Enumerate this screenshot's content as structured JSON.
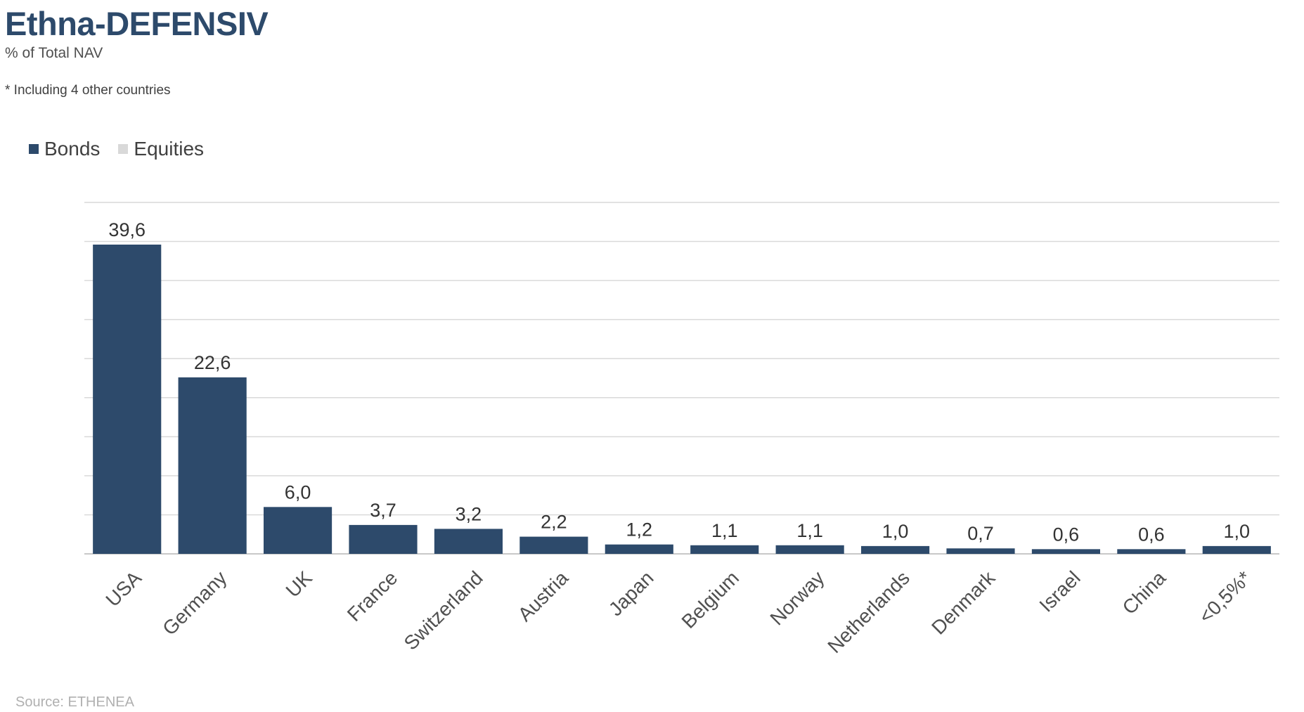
{
  "header": {
    "title": "Ethna-DEFENSIV",
    "subtitle": "% of Total NAV",
    "note": "* Including 4 other countries"
  },
  "legend": {
    "items": [
      {
        "label": "Bonds",
        "color": "#2d4a6b"
      },
      {
        "label": "Equities",
        "color": "#d9d9d9"
      }
    ]
  },
  "footer": {
    "source": "Source: ETHENEA"
  },
  "chart_data": {
    "type": "bar",
    "stacked": true,
    "title": "Ethna-DEFENSIV",
    "subtitle": "% of Total NAV",
    "categories": [
      "USA",
      "Germany",
      "UK",
      "France",
      "Switzerland",
      "Austria",
      "Japan",
      "Belgium",
      "Norway",
      "Netherlands",
      "Denmark",
      "Israel",
      "China",
      "<0,5%*"
    ],
    "series": [
      {
        "name": "Bonds",
        "color": "#2d4a6b",
        "values": [
          39.6,
          22.6,
          6.0,
          3.7,
          3.2,
          2.2,
          1.2,
          1.1,
          1.1,
          1.0,
          0.7,
          0.6,
          0.6,
          1.0
        ]
      },
      {
        "name": "Equities",
        "color": "#d9d9d9",
        "values": [
          0,
          0,
          0,
          0,
          0,
          0,
          0,
          0,
          0,
          0,
          0,
          0,
          0,
          0
        ]
      }
    ],
    "data_labels": [
      "39,6",
      "22,6",
      "6,0",
      "3,7",
      "3,2",
      "2,2",
      "1,2",
      "1,1",
      "1,1",
      "1,0",
      "0,7",
      "0,6",
      "0,6",
      "1,0"
    ],
    "ylim": [
      0,
      45
    ],
    "ytick_step": 5,
    "grid": true,
    "legend_position": "top-left",
    "xlabel": "",
    "ylabel": ""
  }
}
